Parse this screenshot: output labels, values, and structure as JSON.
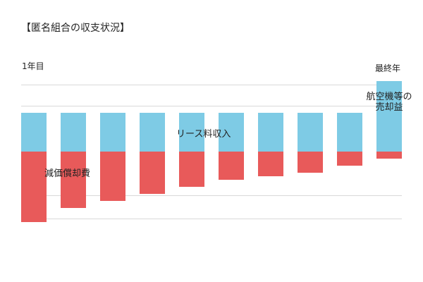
{
  "title": "【匿名組合の収支状況】",
  "first_year_label": "1年目",
  "last_year_label": "最終年",
  "chart_data": {
    "type": "bar",
    "stacked": true,
    "categories": [
      "1年目",
      "",
      "",
      "",
      "",
      "",
      "",
      "",
      "",
      "最終年"
    ],
    "series": [
      {
        "name": "リース料収入",
        "color": "#7ECBE5",
        "values": [
          55,
          55,
          55,
          55,
          55,
          55,
          55,
          55,
          55,
          55
        ]
      },
      {
        "name": "減価償却費",
        "color": "#E85A5A",
        "values": [
          -100,
          -80,
          -70,
          -60,
          -50,
          -40,
          -35,
          -30,
          -20,
          -10
        ]
      },
      {
        "name": "航空機等の売却益",
        "color": "#7ECBE5",
        "values": [
          0,
          0,
          0,
          0,
          0,
          0,
          0,
          0,
          0,
          45
        ]
      }
    ],
    "annotations": {
      "lease_income": "リース料収入",
      "depreciation": "減価償却費",
      "sale_gain_line1": "航空機等の",
      "sale_gain_line2": "売却益"
    },
    "ylim": [
      -100,
      100
    ],
    "grid": true,
    "legend": "none"
  }
}
